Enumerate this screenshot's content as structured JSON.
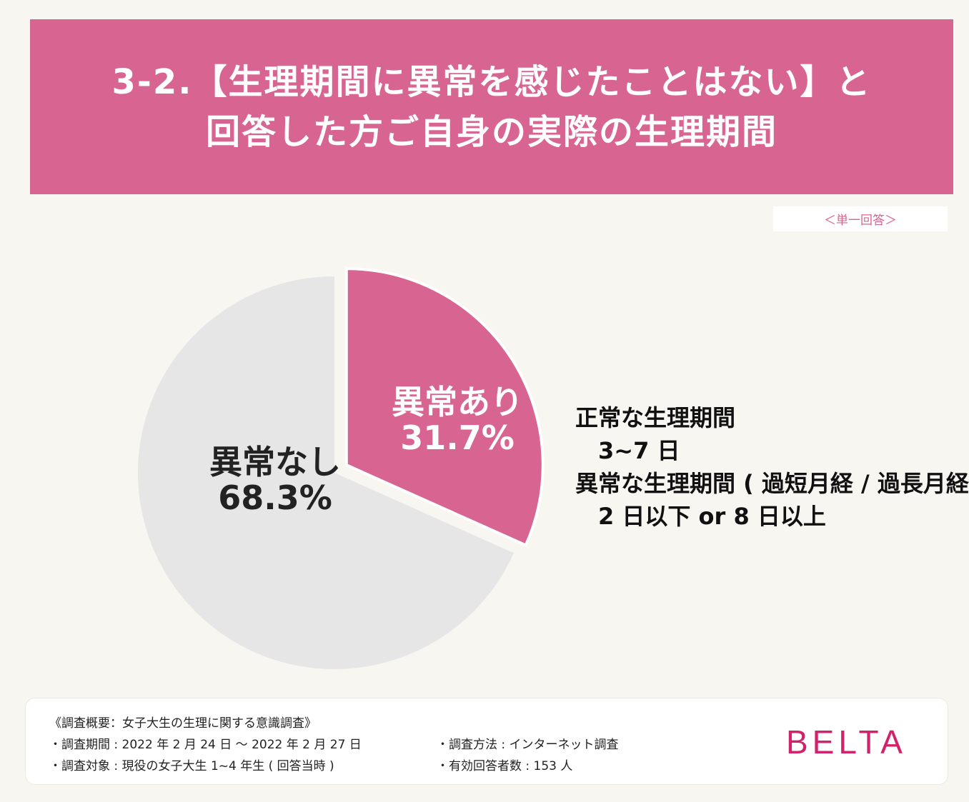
{
  "header": {
    "title_line1": "3-2.【生理期間に異常を感じたことはない】と",
    "title_line2": "回答した方ご自身の実際の生理期間"
  },
  "badge": "＜単一回答＞",
  "chart_data": {
    "type": "pie",
    "slices": [
      {
        "label": "異常あり",
        "value": 31.7,
        "display": "31.7%",
        "color": "#d86491",
        "label_color": "#ffffff",
        "exploded": true
      },
      {
        "label": "異常なし",
        "value": 68.3,
        "display": "68.3%",
        "color": "#e6e6e6",
        "label_color": "#222222",
        "exploded": false
      }
    ]
  },
  "notes": {
    "normal_title": "正常な生理期間",
    "normal_value": "3~7 日",
    "abnormal_title": "異常な生理期間 ( 過短月経 / 過長月経 )",
    "abnormal_value": "2 日以下 or 8 日以上"
  },
  "footer": {
    "heading": "《調査概要：女子大生の生理に関する意識調査》",
    "period": "・調査期間 : 2022 年 2 月 24 日 ～ 2022 年 2 月 27 日",
    "target": "・調査対象 : 現役の女子大生 1~4 年生 ( 回答当時 )",
    "method": "・調査方法 : インターネット調査",
    "respondents": "・有効回答者数 : 153 人"
  },
  "logo": "BELTA"
}
